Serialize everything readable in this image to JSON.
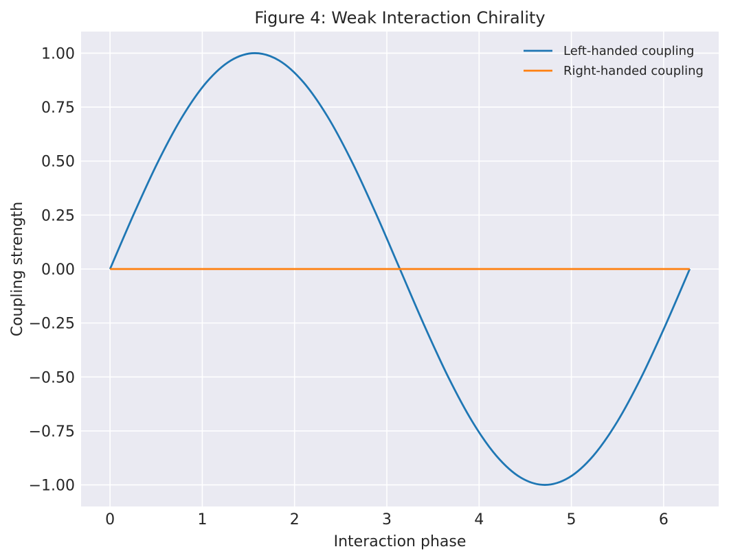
{
  "chart_data": {
    "type": "line",
    "title": "Figure 4: Weak Interaction Chirality",
    "xlabel": "Interaction phase",
    "ylabel": "Coupling strength",
    "xlim": [
      -0.314,
      6.597
    ],
    "ylim": [
      -1.1,
      1.1
    ],
    "x_ticks": [
      0,
      1,
      2,
      3,
      4,
      5,
      6
    ],
    "x_tick_labels": [
      "0",
      "1",
      "2",
      "3",
      "4",
      "5",
      "6"
    ],
    "y_ticks": [
      1.0,
      0.75,
      0.5,
      0.25,
      0.0,
      -0.25,
      -0.5,
      -0.75,
      -1.0
    ],
    "y_tick_labels": [
      "1.00",
      "0.75",
      "0.50",
      "0.25",
      "0.00",
      "−0.25",
      "−0.50",
      "−0.75",
      "−1.00"
    ],
    "grid": true,
    "legend_position": "top-right",
    "x": [
      0,
      0.2618,
      0.5236,
      0.7854,
      1.0472,
      1.309,
      1.5708,
      1.8326,
      2.0944,
      2.3562,
      2.618,
      2.8798,
      3.1416,
      3.4034,
      3.6652,
      3.927,
      4.1888,
      4.4506,
      4.7124,
      4.9742,
      5.236,
      5.4978,
      5.7596,
      6.0214,
      6.2832
    ],
    "series": [
      {
        "name": "Left-handed coupling",
        "color": "#1f77b4",
        "values": [
          0,
          0.2588,
          0.5,
          0.7071,
          0.866,
          0.9659,
          1.0,
          0.9659,
          0.866,
          0.7071,
          0.5,
          0.2588,
          0,
          -0.2588,
          -0.5,
          -0.7071,
          -0.866,
          -0.9659,
          -1.0,
          -0.9659,
          -0.866,
          -0.7071,
          -0.5,
          -0.2588,
          0
        ]
      },
      {
        "name": "Right-handed coupling",
        "color": "#ff7f0e",
        "values": [
          0,
          0,
          0,
          0,
          0,
          0,
          0,
          0,
          0,
          0,
          0,
          0,
          0,
          0,
          0,
          0,
          0,
          0,
          0,
          0,
          0,
          0,
          0,
          0,
          0
        ]
      }
    ]
  }
}
